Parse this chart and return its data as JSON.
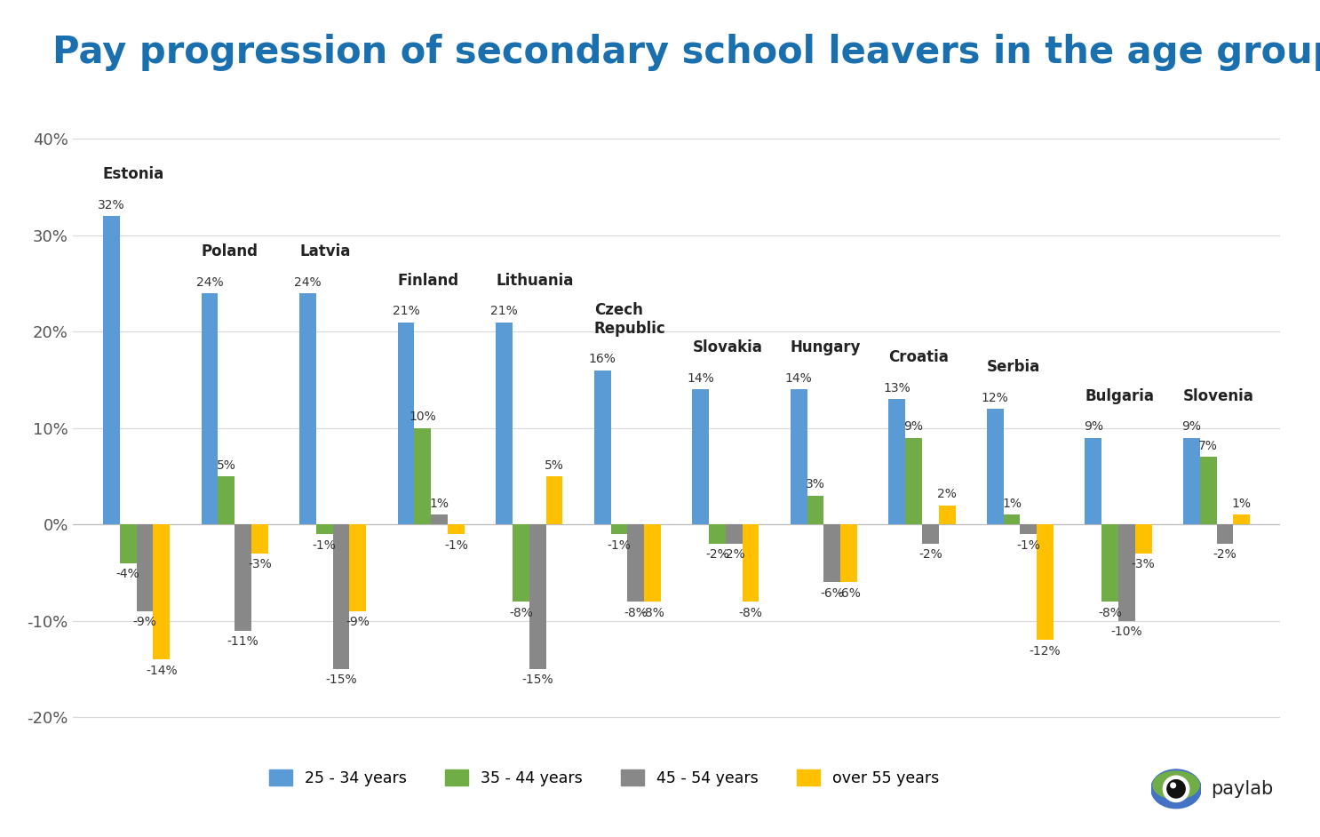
{
  "title": "Pay progression of secondary school leavers in the age group",
  "title_color": "#1a6faf",
  "background_color": "#ffffff",
  "categories": [
    "Estonia",
    "Poland",
    "Latvia",
    "Finland",
    "Lithuania",
    "Czech\nRepublic",
    "Slovakia",
    "Hungary",
    "Croatia",
    "Serbia",
    "Bulgaria",
    "Slovenia"
  ],
  "series": {
    "25 - 34 years": [
      32,
      24,
      24,
      21,
      21,
      16,
      14,
      14,
      13,
      12,
      9,
      9
    ],
    "35 - 44 years": [
      -4,
      5,
      -1,
      10,
      -8,
      -1,
      -2,
      3,
      9,
      1,
      -8,
      7
    ],
    "45 - 54 years": [
      -9,
      -11,
      -15,
      1,
      -15,
      -8,
      -2,
      -6,
      -2,
      -1,
      -10,
      -2
    ],
    "over 55 years": [
      -14,
      -3,
      -9,
      -1,
      5,
      -8,
      -8,
      -6,
      2,
      -12,
      -3,
      1
    ]
  },
  "colors": {
    "25 - 34 years": "#5b9bd5",
    "35 - 44 years": "#70ad47",
    "45 - 54 years": "#888888",
    "over 55 years": "#ffc000"
  },
  "ylim": [
    -22,
    44
  ],
  "yticks": [
    -20,
    -10,
    0,
    10,
    20,
    30,
    40
  ],
  "grid_color": "#d9d9d9",
  "bar_width": 0.17,
  "legend_fontsize": 12.5,
  "title_fontsize": 30,
  "label_fontsize": 10,
  "country_fontsize": 12,
  "axis_fontsize": 13
}
